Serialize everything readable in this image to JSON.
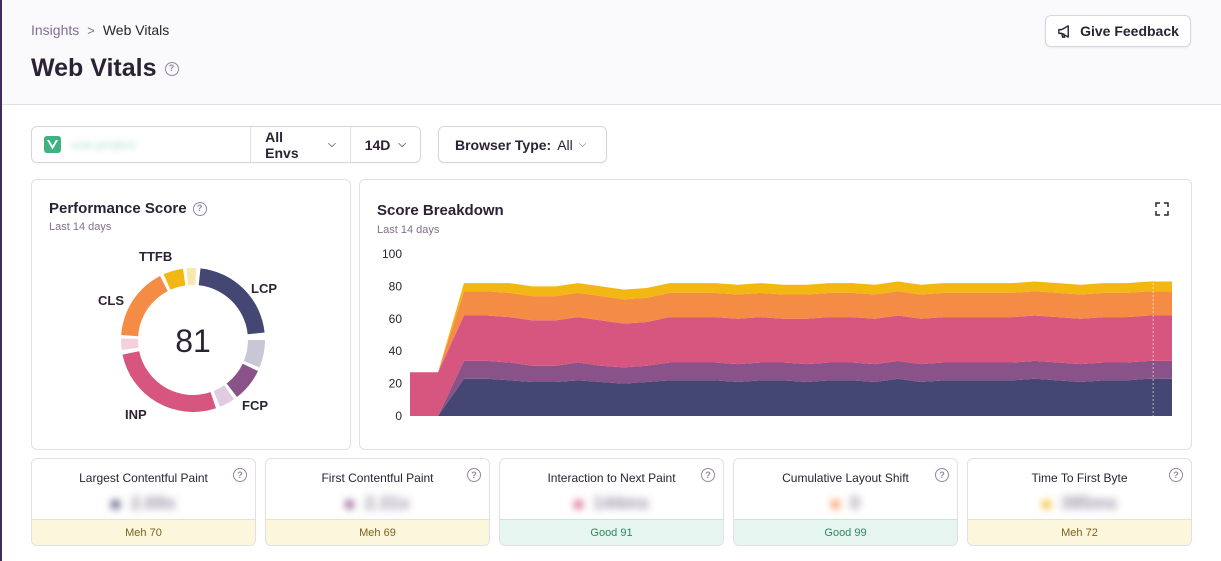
{
  "breadcrumb": {
    "parent": "Insights",
    "separator": ">",
    "current": "Web Vitals"
  },
  "page": {
    "title": "Web Vitals"
  },
  "header": {
    "feedback_label": "Give Feedback"
  },
  "filters": {
    "project_placeholder": "vue-project",
    "env_label": "All Envs",
    "period_label": "14D",
    "browser_label": "Browser Type:",
    "browser_value": "All"
  },
  "performance": {
    "title": "Performance Score",
    "subtitle": "Last 14 days",
    "score": "81",
    "labels": {
      "ttfb": "TTFB",
      "lcp": "LCP",
      "cls": "CLS",
      "fcp": "FCP",
      "inp": "INP"
    }
  },
  "breakdown": {
    "title": "Score Breakdown",
    "subtitle": "Last 14 days"
  },
  "metrics": [
    {
      "name": "Largest Contentful Paint",
      "value": "2.69s",
      "status": "Meh 70",
      "level": "meh",
      "dot": "#444674"
    },
    {
      "name": "First Contentful Paint",
      "value": "2.31s",
      "status": "Meh 69",
      "level": "meh",
      "dot": "#895289"
    },
    {
      "name": "Interaction to Next Paint",
      "value": "144ms",
      "status": "Good 91",
      "level": "good",
      "dot": "#d6567f"
    },
    {
      "name": "Cumulative Layout Shift",
      "value": "0",
      "status": "Good 99",
      "level": "good",
      "dot": "#f58c46"
    },
    {
      "name": "Time To First Byte",
      "value": "395ms",
      "status": "Meh 72",
      "level": "meh",
      "dot": "#f2b712"
    }
  ],
  "colors": {
    "lcp": "#444674",
    "fcp": "#895289",
    "inp": "#d6567f",
    "cls": "#f58c46",
    "ttfb": "#f2b712"
  },
  "chart_data": {
    "type": "area",
    "title": "Score Breakdown",
    "ylim": [
      0,
      100
    ],
    "yticks": [
      0,
      20,
      40,
      60,
      80,
      100
    ],
    "legend": "none",
    "series": [
      {
        "name": "LCP",
        "values": [
          0,
          0,
          23,
          23,
          22,
          21,
          21,
          22,
          21,
          20,
          21,
          22,
          22,
          22,
          21,
          22,
          22,
          21,
          22,
          22,
          21,
          23,
          21,
          22,
          22,
          22,
          22,
          23,
          22,
          21,
          22,
          22,
          23,
          23
        ]
      },
      {
        "name": "FCP",
        "values": [
          0,
          0,
          11,
          11,
          11,
          10,
          10,
          11,
          10,
          10,
          10,
          11,
          11,
          11,
          11,
          11,
          11,
          11,
          11,
          11,
          11,
          11,
          11,
          11,
          11,
          11,
          11,
          11,
          11,
          11,
          11,
          11,
          11,
          11
        ]
      },
      {
        "name": "INP",
        "values": [
          27,
          27,
          28,
          28,
          28,
          28,
          28,
          28,
          28,
          27,
          27,
          28,
          28,
          28,
          28,
          28,
          27,
          28,
          28,
          28,
          28,
          28,
          28,
          28,
          28,
          28,
          28,
          28,
          28,
          28,
          28,
          28,
          28,
          28
        ]
      },
      {
        "name": "CLS",
        "values": [
          0,
          0,
          15,
          15,
          15,
          15,
          15,
          15,
          15,
          15,
          15,
          15,
          15,
          15,
          15,
          15,
          15,
          15,
          15,
          15,
          15,
          15,
          15,
          15,
          15,
          15,
          15,
          15,
          15,
          15,
          15,
          15,
          15,
          15
        ]
      },
      {
        "name": "TTFB",
        "values": [
          0,
          0,
          5,
          5,
          6,
          6,
          6,
          6,
          6,
          6,
          6,
          6,
          6,
          6,
          6,
          6,
          6,
          6,
          6,
          6,
          6,
          6,
          6,
          6,
          6,
          6,
          6,
          6,
          6,
          6,
          6,
          6,
          6,
          6
        ]
      }
    ]
  }
}
